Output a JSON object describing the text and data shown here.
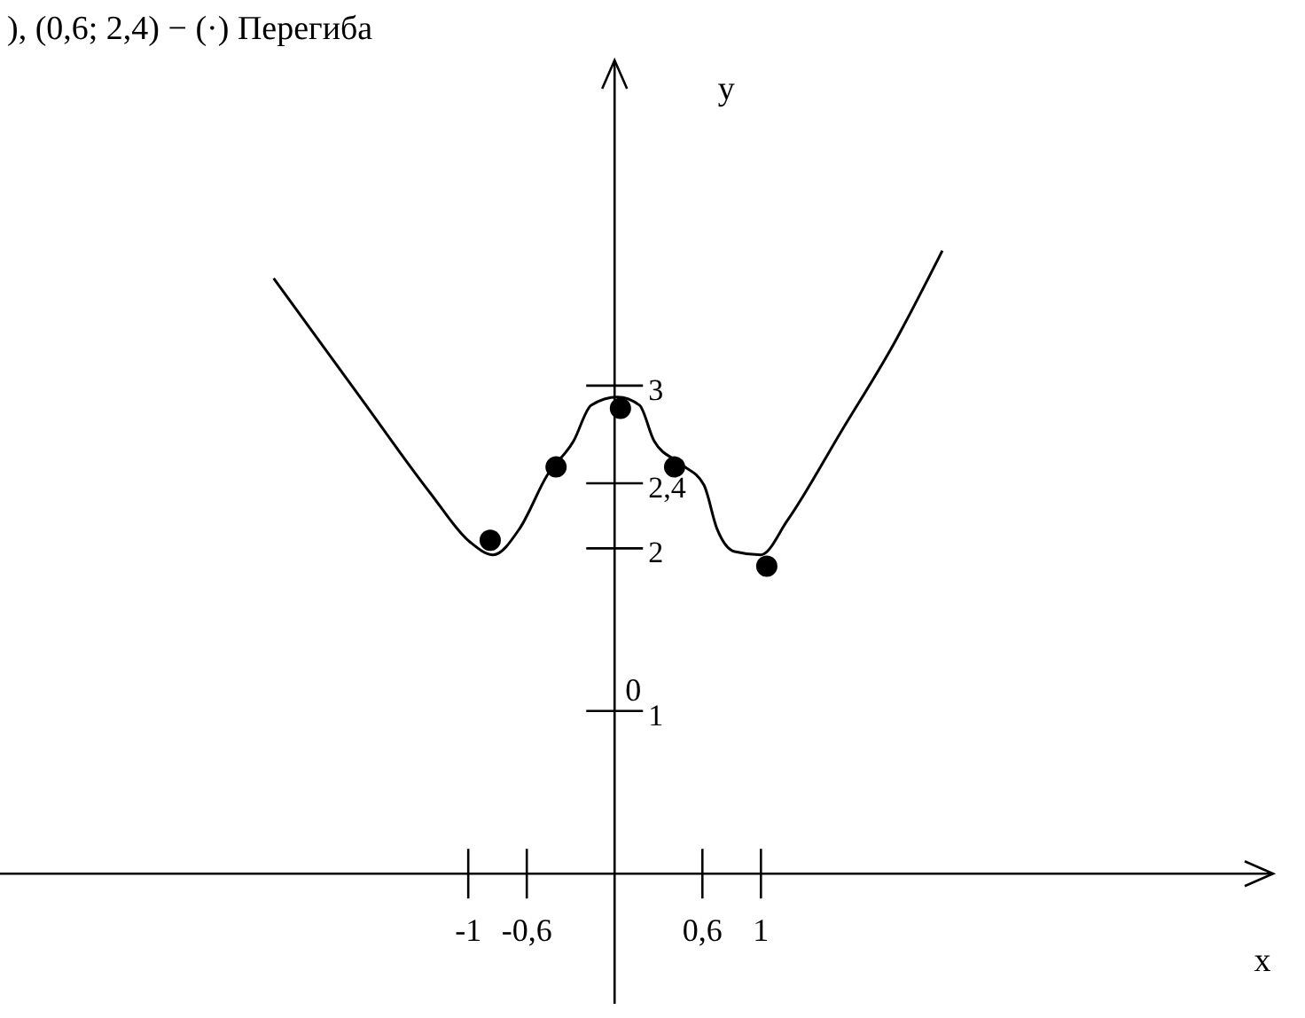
{
  "chart_data": {
    "type": "line",
    "title": "), (0,6; 2,4) − (·) Перегиба",
    "xlabel": "x",
    "ylabel": "y",
    "xlim": [
      -4.2,
      4.5
    ],
    "ylim": [
      -0.8,
      5
    ],
    "xticks": [
      {
        "value": -1,
        "label": "-1"
      },
      {
        "value": -0.6,
        "label": "-0,6"
      },
      {
        "value": 0.6,
        "label": "0,6"
      },
      1
    ],
    "yticks": [
      1,
      2,
      {
        "value": 2.4,
        "label": "2,4"
      },
      3
    ],
    "annotations": [
      "0"
    ],
    "grid": false,
    "series": [
      {
        "color": "#000000",
        "marker": "none",
        "x": [
          -2.33,
          -1.74,
          -1.26,
          -0.99,
          -0.83,
          -0.65,
          -0.46,
          -0.28,
          -0.16,
          0.02,
          0.17,
          0.27,
          0.45,
          0.61,
          0.7,
          0.82,
          1.0,
          1.18,
          1.55,
          1.91,
          2.24
        ],
        "values": [
          3.66,
          2.93,
          2.34,
          2.04,
          1.96,
          2.12,
          2.45,
          2.66,
          2.88,
          2.93,
          2.88,
          2.66,
          2.52,
          2.39,
          2.12,
          1.98,
          1.96,
          2.17,
          2.72,
          3.26,
          3.83
        ]
      },
      {
        "type": "scatter",
        "color": "#000000",
        "marker": "circle",
        "x": [
          -0.85,
          -0.4,
          0.04,
          0.41,
          1.04
        ],
        "values": [
          2.05,
          2.5,
          2.86,
          2.5,
          1.89
        ]
      }
    ]
  }
}
